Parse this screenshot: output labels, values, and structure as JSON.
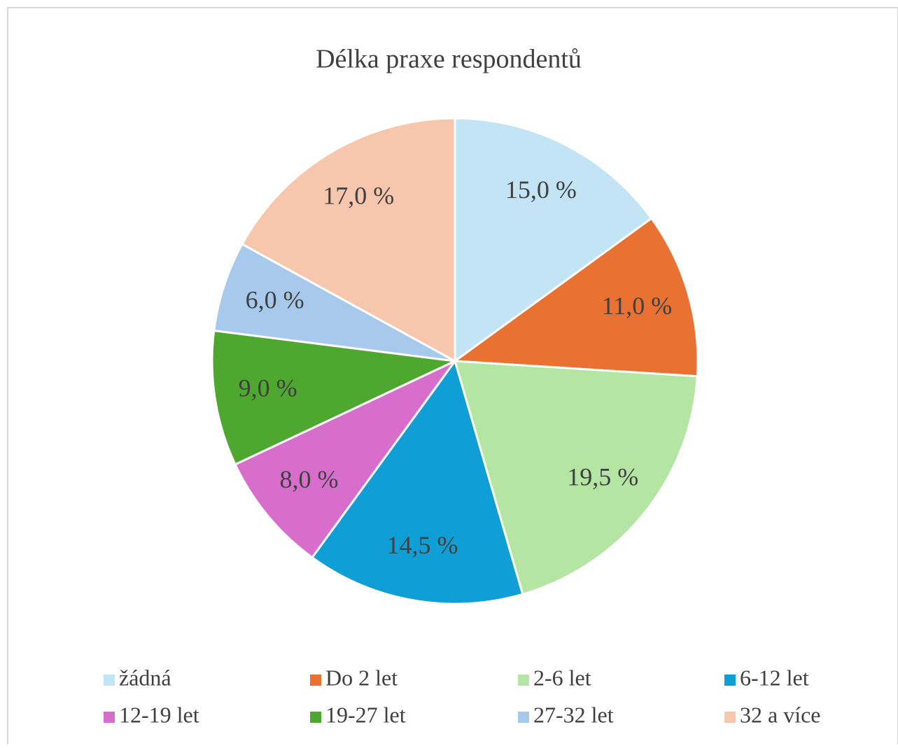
{
  "chart_data": {
    "type": "pie",
    "title": "Délka praxe respondentů",
    "categories": [
      "žádná",
      "Do 2 let",
      "2-6 let",
      "6-12 let",
      "12-19 let",
      "19-27 let",
      "27-32 let",
      "32 a více"
    ],
    "values": [
      15,
      11,
      19.5,
      14.5,
      8,
      9,
      6,
      17
    ],
    "value_labels": [
      "15,0 %",
      "11,0 %",
      "19,5 %",
      "14,5 %",
      "8,0 %",
      "9,0 %",
      "6,0 %",
      "17,0 %"
    ],
    "colors": [
      "#c2e4f4",
      "#e97132",
      "#b4e5a2",
      "#0f9ed5",
      "#d86ecc",
      "#4ea72e",
      "#a6c9ec",
      "#f6c6ad"
    ],
    "legend": "bottom"
  }
}
